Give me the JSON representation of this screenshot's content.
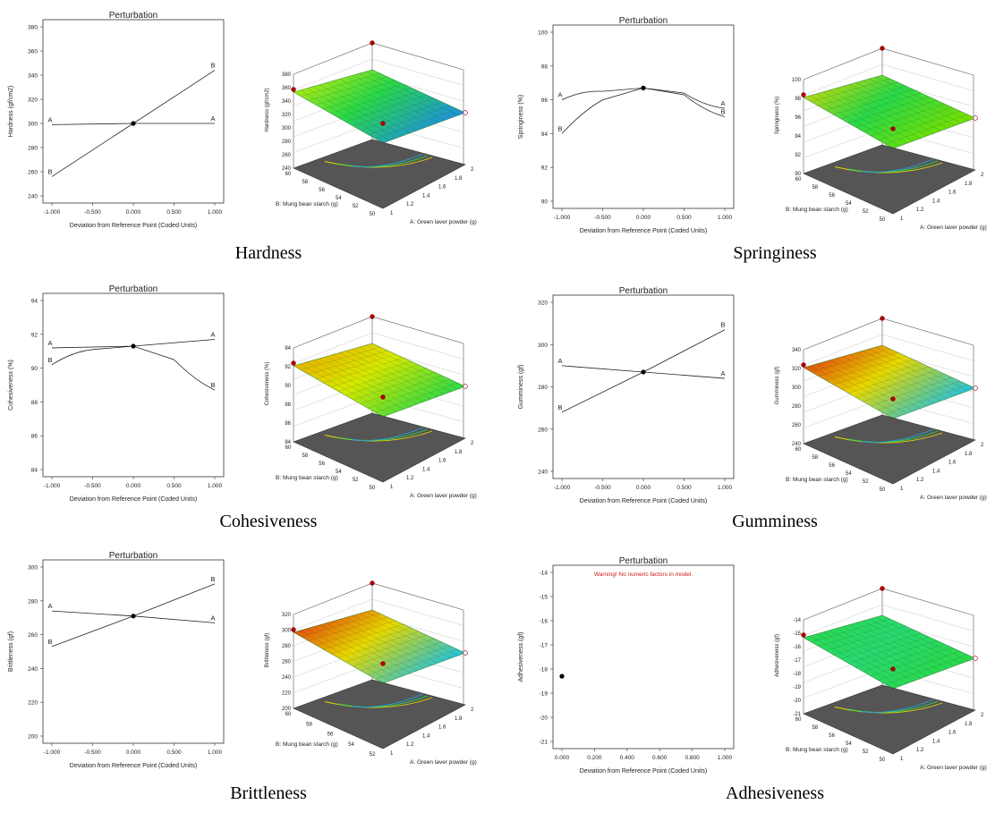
{
  "perturbation_title": "Perturbation",
  "x_axis_label": "Deviation from Reference Point (Coded Units)",
  "surface_axis_a": "A: Green laver powder (g)",
  "surface_axis_b": "B: Mung bean starch (g)",
  "panels": [
    {
      "caption": "Hardness",
      "chart_data": {
        "type": "line",
        "title": "Perturbation",
        "xlabel": "Deviation from Reference Point (Coded Units)",
        "ylabel": "Hardness (gf/cm2)",
        "xlim": [
          -1,
          1
        ],
        "ylim": [
          240,
          380
        ],
        "yticks": [
          "240",
          "260",
          "280",
          "300",
          "320",
          "340",
          "360",
          "380"
        ],
        "xticks": [
          "-1.000",
          "-0.500",
          "0.000",
          "0.500",
          "1.000"
        ],
        "series": [
          {
            "name": "A",
            "x": [
              -1,
              0,
              1
            ],
            "values": [
              299,
              300,
              300
            ]
          },
          {
            "name": "B",
            "x": [
              -1,
              0,
              1
            ],
            "values": [
              256,
              300,
              344
            ]
          }
        ],
        "reference_point": [
          0,
          300
        ],
        "surface": {
          "zlabel": "Hardness (gf/cm2)",
          "zticks": [
            "240",
            "260",
            "280",
            "300",
            "320",
            "340",
            "360",
            "380"
          ],
          "a_ticks": [
            "1",
            "1.2",
            "1.4",
            "1.6",
            "1.8",
            "2"
          ],
          "b_ticks": [
            "50",
            "52",
            "54",
            "56",
            "58",
            "60"
          ],
          "colors": [
            "#d7f000",
            "#2ad84a",
            "#1f8fe0"
          ]
        }
      }
    },
    {
      "caption": "Springiness",
      "chart_data": {
        "type": "line",
        "title": "Perturbation",
        "xlabel": "Deviation from Reference Point (Coded Units)",
        "ylabel": "Springiness (%)",
        "xlim": [
          -1,
          1
        ],
        "ylim": [
          90,
          100
        ],
        "yticks": [
          "90",
          "92",
          "94",
          "96",
          "98",
          "100"
        ],
        "xticks": [
          "-1.000",
          "-0.500",
          "0.000",
          "0.500",
          "1.000"
        ],
        "series": [
          {
            "name": "A",
            "x": [
              -1,
              -0.5,
              0,
              0.5,
              1
            ],
            "values": [
              96.0,
              96.5,
              96.7,
              96.4,
              95.5
            ]
          },
          {
            "name": "B",
            "x": [
              -1,
              -0.5,
              0,
              0.5,
              1
            ],
            "values": [
              94.0,
              96.0,
              96.7,
              96.3,
              95.0
            ]
          }
        ],
        "reference_point": [
          0,
          96.7
        ],
        "surface": {
          "zlabel": "Springiness (%)",
          "zticks": [
            "90",
            "92",
            "94",
            "96",
            "98",
            "100"
          ],
          "a_ticks": [
            "1",
            "1.2",
            "1.4",
            "1.6",
            "1.8",
            "2"
          ],
          "b_ticks": [
            "50",
            "52",
            "54",
            "56",
            "58",
            "60"
          ],
          "colors": [
            "#e8d800",
            "#2ad84a",
            "#7be000"
          ]
        }
      }
    },
    {
      "caption": "Cohesiveness",
      "chart_data": {
        "type": "line",
        "title": "Perturbation",
        "xlabel": "Deviation from Reference Point (Coded Units)",
        "ylabel": "Cohesiveness (%)",
        "xlim": [
          -1,
          1
        ],
        "ylim": [
          84,
          94
        ],
        "yticks": [
          "84",
          "86",
          "88",
          "90",
          "92",
          "94"
        ],
        "xticks": [
          "-1.000",
          "-0.500",
          "0.000",
          "0.500",
          "1.000"
        ],
        "series": [
          {
            "name": "A",
            "x": [
              -1,
              0,
              1
            ],
            "values": [
              91.2,
              91.3,
              91.7
            ]
          },
          {
            "name": "B",
            "x": [
              -1,
              -0.5,
              0,
              0.5,
              1
            ],
            "values": [
              90.2,
              91.1,
              91.3,
              90.5,
              88.7
            ]
          }
        ],
        "reference_point": [
          0,
          91.3
        ],
        "surface": {
          "zlabel": "Cohesiveness (%)",
          "zticks": [
            "84",
            "86",
            "88",
            "90",
            "92",
            "94"
          ],
          "a_ticks": [
            "1",
            "1.2",
            "1.4",
            "1.6",
            "1.8",
            "2"
          ],
          "b_ticks": [
            "50",
            "52",
            "54",
            "56",
            "58",
            "60"
          ],
          "colors": [
            "#f0a000",
            "#d7e800",
            "#2ad84a"
          ]
        }
      }
    },
    {
      "caption": "Gumminess",
      "chart_data": {
        "type": "line",
        "title": "Perturbation",
        "xlabel": "Deviation from Reference Point (Coded Units)",
        "ylabel": "Gumminess (gf)",
        "xlim": [
          -1,
          1
        ],
        "ylim": [
          240,
          320
        ],
        "yticks": [
          "240",
          "260",
          "280",
          "300",
          "320"
        ],
        "xticks": [
          "-1.000",
          "-0.500",
          "0.000",
          "0.500",
          "1.000"
        ],
        "series": [
          {
            "name": "A",
            "x": [
              -1,
              0,
              1
            ],
            "values": [
              290,
              287,
              284
            ]
          },
          {
            "name": "B",
            "x": [
              -1,
              0,
              1
            ],
            "values": [
              268,
              287,
              307
            ]
          }
        ],
        "reference_point": [
          0,
          287
        ],
        "surface": {
          "zlabel": "Gumminess (gf)",
          "zticks": [
            "240",
            "260",
            "280",
            "300",
            "320",
            "340"
          ],
          "a_ticks": [
            "1",
            "1.2",
            "1.4",
            "1.6",
            "1.8",
            "2"
          ],
          "b_ticks": [
            "50",
            "52",
            "54",
            "56",
            "58",
            "60"
          ],
          "colors": [
            "#e02010",
            "#e8d800",
            "#20c0e0"
          ]
        }
      }
    },
    {
      "caption": "Brittleness",
      "chart_data": {
        "type": "line",
        "title": "Perturbation",
        "xlabel": "Deviation from Reference Point (Coded Units)",
        "ylabel": "Brittleness (gf)",
        "xlim": [
          -1,
          1
        ],
        "ylim": [
          200,
          300
        ],
        "yticks": [
          "200",
          "220",
          "240",
          "260",
          "280",
          "300"
        ],
        "xticks": [
          "-1.000",
          "-0.500",
          "0.000",
          "0.500",
          "1.000"
        ],
        "series": [
          {
            "name": "A",
            "x": [
              -1,
              0,
              1
            ],
            "values": [
              274,
              271,
              267
            ]
          },
          {
            "name": "B",
            "x": [
              -1,
              0,
              1
            ],
            "values": [
              253,
              271,
              290
            ]
          }
        ],
        "reference_point": [
          0,
          271
        ],
        "surface": {
          "zlabel": "Brittleness (gf)",
          "zticks": [
            "200",
            "220",
            "240",
            "260",
            "280",
            "300",
            "320"
          ],
          "a_ticks": [
            "1",
            "1.2",
            "1.4",
            "1.6",
            "1.8",
            "2"
          ],
          "b_ticks": [
            "52",
            "54",
            "56",
            "58",
            "60"
          ],
          "colors": [
            "#e02010",
            "#e8d800",
            "#20c0e0"
          ]
        }
      }
    },
    {
      "caption": "Adhesiveness",
      "chart_data": {
        "type": "scatter",
        "title": "Perturbation",
        "warning": "Warning! No numeric factors in model.",
        "xlabel": "Deviation from Reference Point (Coded Units)",
        "ylabel": "Adhesiveness (gf)",
        "xlim": [
          0,
          1
        ],
        "ylim": [
          -21,
          -14
        ],
        "yticks": [
          "-21",
          "-20",
          "-19",
          "-18",
          "-17",
          "-16",
          "-15",
          "-14"
        ],
        "xticks": [
          "0.000",
          "0.200",
          "0.400",
          "0.600",
          "0.800",
          "1.000"
        ],
        "series": [],
        "reference_point": [
          0,
          -18.3
        ],
        "surface": {
          "zlabel": "Adhesiveness (gf)",
          "zticks": [
            "-21",
            "-20",
            "-19",
            "-18",
            "-17",
            "-16",
            "-15",
            "-14"
          ],
          "a_ticks": [
            "1",
            "1.2",
            "1.4",
            "1.6",
            "1.8",
            "2"
          ],
          "b_ticks": [
            "50",
            "52",
            "54",
            "56",
            "58",
            "60"
          ],
          "colors": [
            "#2ad84a",
            "#2ad870",
            "#2ad84a"
          ]
        }
      }
    }
  ]
}
